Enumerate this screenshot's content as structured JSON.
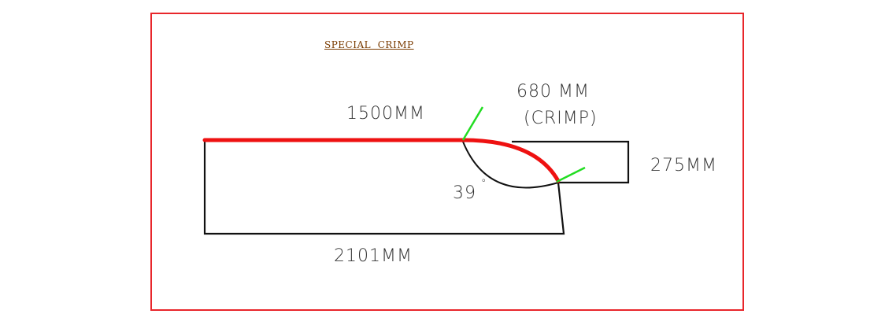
{
  "title": "SPECIAL  CRIMP",
  "dimensions": {
    "top_length": "1500MM",
    "crimp_length": "680 MM",
    "crimp_note": "(CRIMP)",
    "height": "275MM",
    "angle": "39",
    "angle_unit": "°",
    "bottom_length": "2101MM"
  },
  "colors": {
    "frame": "#e8262b",
    "highlight_edge": "#ee1111",
    "marker": "#22dd22",
    "outline": "#111111",
    "title": "#7a3b00"
  }
}
